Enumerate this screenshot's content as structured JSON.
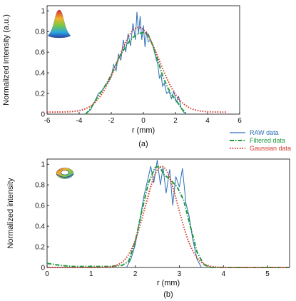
{
  "chart_data": [
    {
      "type": "line",
      "panel_label": "(a)",
      "xlabel": "r (mm)",
      "ylabel": "Normalized intensity (a.u.)",
      "xlim": [
        -6,
        6
      ],
      "ylim": [
        0,
        1.05
      ],
      "xticks": [
        "-6",
        "-4",
        "-2",
        "0",
        "2",
        "4",
        "6"
      ],
      "yticks": [
        "0",
        "0.2",
        "0.4",
        "0.6",
        "0.8",
        "1"
      ],
      "grid": false,
      "inset_icon": "gaussian-beam-icon",
      "series": [
        {
          "name": "RAW data",
          "color": "#2b6fb6",
          "style": "solid",
          "x": [
            -3.6,
            -3.3,
            -3.0,
            -2.8,
            -2.6,
            -2.4,
            -2.2,
            -2.0,
            -1.85,
            -1.7,
            -1.55,
            -1.4,
            -1.25,
            -1.1,
            -0.95,
            -0.8,
            -0.65,
            -0.5,
            -0.4,
            -0.3,
            -0.2,
            -0.1,
            0.0,
            0.1,
            0.2,
            0.3,
            0.45,
            0.6,
            0.75,
            0.9,
            1.0,
            1.1,
            1.2,
            1.3,
            1.45,
            1.6,
            1.75,
            1.9,
            2.05,
            2.2,
            2.35,
            2.5,
            2.7
          ],
          "y": [
            0.0,
            0.04,
            0.13,
            0.2,
            0.22,
            0.27,
            0.31,
            0.36,
            0.48,
            0.42,
            0.58,
            0.52,
            0.72,
            0.6,
            0.78,
            0.66,
            0.88,
            0.72,
            0.99,
            0.78,
            0.95,
            0.72,
            0.86,
            0.65,
            0.8,
            0.7,
            0.72,
            0.66,
            0.56,
            0.48,
            0.35,
            0.38,
            0.27,
            0.3,
            0.2,
            0.22,
            0.15,
            0.22,
            0.12,
            0.17,
            0.06,
            0.02,
            0.0
          ]
        },
        {
          "name": "Filtered data",
          "color": "#1f9a3c",
          "style": "dashdot",
          "x": [
            -3.6,
            -3.3,
            -3.0,
            -2.7,
            -2.4,
            -2.1,
            -1.8,
            -1.5,
            -1.2,
            -0.9,
            -0.6,
            -0.3,
            0.0,
            0.3,
            0.6,
            0.9,
            1.2,
            1.5,
            1.8,
            2.1,
            2.4,
            2.7
          ],
          "y": [
            0.0,
            0.05,
            0.13,
            0.2,
            0.27,
            0.35,
            0.45,
            0.55,
            0.63,
            0.7,
            0.75,
            0.78,
            0.79,
            0.77,
            0.66,
            0.52,
            0.37,
            0.26,
            0.18,
            0.12,
            0.05,
            0.0
          ]
        },
        {
          "name": "Gaussian data",
          "color": "#d33a2f",
          "style": "dotted",
          "gaussian": {
            "amplitude": 0.82,
            "center": -0.3,
            "sigma": 1.3,
            "offset": 0.02,
            "x_range": [
              -6,
              5.2
            ]
          }
        }
      ]
    },
    {
      "type": "line",
      "panel_label": "(b)",
      "xlabel": "r (mm)",
      "ylabel": "Normalized intensity",
      "xlim": [
        0,
        5.5
      ],
      "ylim": [
        0,
        1.05
      ],
      "xticks": [
        "0",
        "1",
        "2",
        "3",
        "4",
        "5"
      ],
      "yticks": [
        "0",
        "0.2",
        "0.4",
        "0.6",
        "0.8",
        "1"
      ],
      "grid": false,
      "inset_icon": "ring-beam-icon",
      "series": [
        {
          "name": "RAW data",
          "color": "#2b6fb6",
          "style": "solid",
          "x": [
            1.8,
            1.9,
            2.0,
            2.1,
            2.2,
            2.3,
            2.35,
            2.42,
            2.5,
            2.57,
            2.63,
            2.7,
            2.78,
            2.85,
            2.92,
            3.0,
            3.07,
            3.15,
            3.22,
            3.3,
            3.4,
            3.5
          ],
          "y": [
            0.0,
            0.08,
            0.22,
            0.45,
            0.7,
            0.88,
            0.98,
            0.82,
            1.04,
            0.8,
            0.97,
            0.72,
            0.95,
            0.6,
            0.88,
            0.78,
            0.96,
            0.62,
            0.5,
            0.28,
            0.08,
            0.0
          ]
        },
        {
          "name": "Filtered data",
          "color": "#1f9a3c",
          "style": "dashdot",
          "x": [
            0.0,
            0.3,
            0.6,
            1.0,
            1.4,
            1.7,
            1.85,
            2.0,
            2.15,
            2.3,
            2.45,
            2.55,
            2.65,
            2.8,
            2.95,
            3.1,
            3.25,
            3.4,
            3.55,
            3.7,
            4.0,
            5.5
          ],
          "y": [
            0.04,
            0.02,
            0.01,
            0.01,
            0.01,
            0.02,
            0.06,
            0.25,
            0.55,
            0.82,
            0.97,
            0.98,
            0.9,
            0.85,
            0.78,
            0.65,
            0.4,
            0.15,
            0.03,
            0.0,
            0.0,
            0.0
          ]
        },
        {
          "name": "Gaussian data",
          "color": "#d33a2f",
          "style": "dotted",
          "gaussian": {
            "amplitude": 0.98,
            "center": 2.6,
            "sigma": 0.37,
            "offset": 0.0,
            "x_range": [
              0,
              5.5
            ]
          }
        }
      ]
    }
  ]
}
